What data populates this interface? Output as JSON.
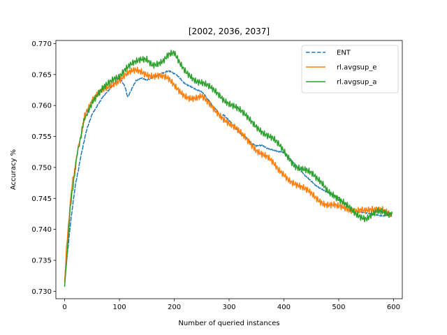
{
  "chart_data": {
    "type": "line",
    "title": "[2002, 2036, 2037]",
    "xlabel": "Number of queried instances",
    "ylabel": "Accuracy %",
    "xlim": [
      -16,
      616
    ],
    "ylim": [
      0.7288,
      0.7705
    ],
    "xticks": [
      0,
      100,
      200,
      300,
      400,
      500,
      600
    ],
    "yticks": [
      0.73,
      0.735,
      0.74,
      0.745,
      0.75,
      0.755,
      0.76,
      0.765,
      0.77
    ],
    "ytick_labels": [
      "0.730",
      "0.735",
      "0.740",
      "0.745",
      "0.750",
      "0.755",
      "0.760",
      "0.765",
      "0.770"
    ],
    "grid": false,
    "legend_position": "top-right",
    "series": [
      {
        "name": "ENT",
        "color": "#1f77b4",
        "style": "dashed",
        "x": [
          0,
          5,
          10,
          15,
          20,
          25,
          30,
          40,
          50,
          60,
          70,
          80,
          90,
          100,
          110,
          115,
          120,
          130,
          140,
          150,
          160,
          170,
          180,
          190,
          200,
          205,
          210,
          220,
          230,
          240,
          250,
          260,
          270,
          280,
          285,
          290,
          300,
          310,
          320,
          330,
          340,
          350,
          360,
          370,
          380,
          390,
          400,
          410,
          420,
          430,
          440,
          450,
          460,
          470,
          480,
          490,
          500,
          510,
          520,
          530,
          540,
          550,
          560,
          570,
          580,
          590,
          597
        ],
        "y": [
          0.7315,
          0.736,
          0.7405,
          0.744,
          0.7475,
          0.7495,
          0.752,
          0.756,
          0.7585,
          0.76,
          0.7615,
          0.7625,
          0.7635,
          0.7645,
          0.763,
          0.7614,
          0.7622,
          0.764,
          0.7645,
          0.7642,
          0.7645,
          0.7648,
          0.7652,
          0.7656,
          0.7652,
          0.7648,
          0.7645,
          0.7635,
          0.763,
          0.7625,
          0.7622,
          0.7612,
          0.76,
          0.759,
          0.758,
          0.7585,
          0.7575,
          0.7565,
          0.7555,
          0.755,
          0.754,
          0.7535,
          0.7535,
          0.753,
          0.7528,
          0.7526,
          0.7525,
          0.7515,
          0.7505,
          0.7495,
          0.7485,
          0.7478,
          0.747,
          0.7465,
          0.746,
          0.7455,
          0.745,
          0.7442,
          0.7435,
          0.743,
          0.7428,
          0.7426,
          0.7424,
          0.7423,
          0.7422,
          0.7424,
          0.7426
        ]
      },
      {
        "name": "rl.avgsup_e",
        "color": "#ff7f0e",
        "style": "solid",
        "x": [
          0,
          5,
          10,
          15,
          20,
          25,
          30,
          35,
          40,
          50,
          60,
          70,
          80,
          90,
          100,
          110,
          120,
          130,
          140,
          150,
          160,
          170,
          180,
          190,
          200,
          210,
          220,
          230,
          240,
          250,
          260,
          270,
          280,
          290,
          300,
          310,
          320,
          330,
          340,
          350,
          360,
          370,
          380,
          390,
          400,
          410,
          420,
          430,
          440,
          450,
          460,
          470,
          480,
          490,
          500,
          510,
          520,
          530,
          540,
          550,
          560,
          570,
          580,
          590,
          597
        ],
        "y": [
          0.7315,
          0.739,
          0.744,
          0.748,
          0.7505,
          0.753,
          0.7555,
          0.7575,
          0.759,
          0.7605,
          0.7615,
          0.7625,
          0.7632,
          0.7638,
          0.7642,
          0.7648,
          0.7652,
          0.7655,
          0.7655,
          0.7652,
          0.765,
          0.7648,
          0.7645,
          0.764,
          0.7632,
          0.7625,
          0.7618,
          0.7612,
          0.761,
          0.7612,
          0.7605,
          0.7598,
          0.759,
          0.758,
          0.757,
          0.7562,
          0.7555,
          0.7548,
          0.754,
          0.753,
          0.7522,
          0.7515,
          0.7505,
          0.7495,
          0.749,
          0.7482,
          0.7475,
          0.7468,
          0.7462,
          0.7456,
          0.745,
          0.7445,
          0.7442,
          0.744,
          0.7435,
          0.7432,
          0.743,
          0.7432,
          0.7435,
          0.7432,
          0.743,
          0.7428,
          0.743,
          0.7428,
          0.7426
        ]
      },
      {
        "name": "rl.avgsup_a",
        "color": "#2ca02c",
        "style": "solid",
        "x": [
          0,
          5,
          10,
          15,
          20,
          25,
          30,
          35,
          40,
          50,
          60,
          70,
          80,
          90,
          100,
          110,
          120,
          130,
          140,
          150,
          160,
          170,
          180,
          190,
          200,
          210,
          220,
          230,
          240,
          250,
          260,
          270,
          280,
          290,
          300,
          310,
          320,
          330,
          340,
          350,
          360,
          370,
          380,
          390,
          400,
          410,
          420,
          430,
          440,
          450,
          460,
          470,
          480,
          490,
          500,
          510,
          520,
          530,
          540,
          550,
          560,
          570,
          580,
          590,
          597
        ],
        "y": [
          0.7308,
          0.737,
          0.743,
          0.747,
          0.7505,
          0.753,
          0.7555,
          0.7572,
          0.7588,
          0.7605,
          0.7615,
          0.7625,
          0.7635,
          0.7645,
          0.765,
          0.766,
          0.7665,
          0.7668,
          0.7672,
          0.7675,
          0.7668,
          0.767,
          0.7672,
          0.768,
          0.7682,
          0.7668,
          0.7658,
          0.765,
          0.764,
          0.7635,
          0.763,
          0.7625,
          0.762,
          0.7612,
          0.7605,
          0.7598,
          0.759,
          0.7582,
          0.7575,
          0.7568,
          0.756,
          0.7552,
          0.7545,
          0.7535,
          0.7525,
          0.7515,
          0.7505,
          0.75,
          0.7495,
          0.7488,
          0.748,
          0.7475,
          0.7465,
          0.7458,
          0.7448,
          0.744,
          0.7432,
          0.7425,
          0.7422,
          0.742,
          0.7425,
          0.7428,
          0.7425,
          0.7422,
          0.7428
        ]
      }
    ]
  }
}
